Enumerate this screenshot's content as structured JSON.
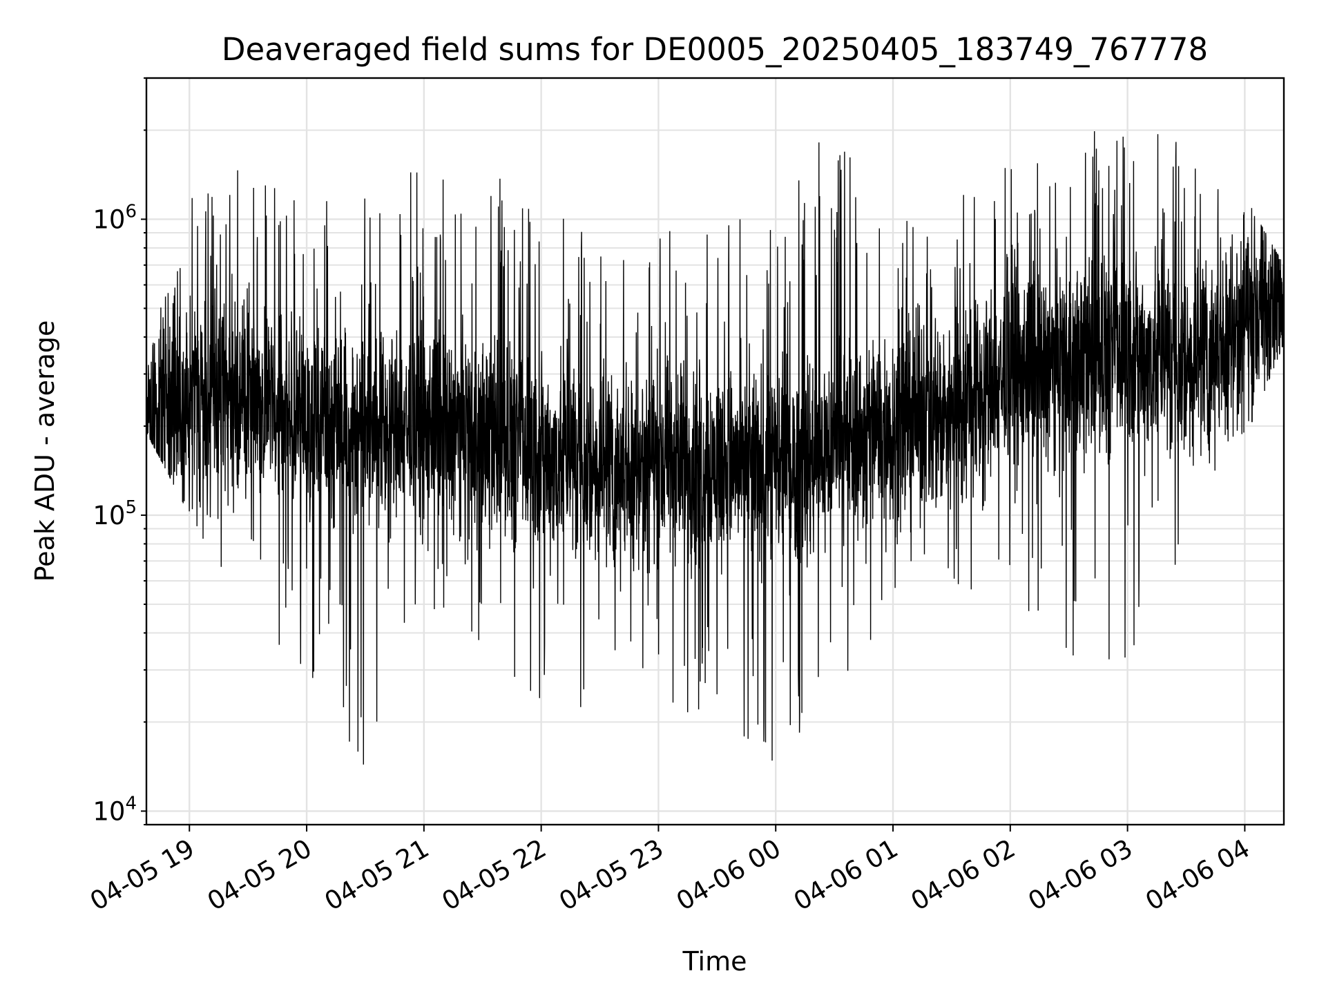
{
  "chart_data": {
    "type": "line",
    "title": "Deaveraged field sums for DE0005_20250405_183749_767778",
    "xlabel": "Time",
    "ylabel": "Peak ADU - average",
    "yscale": "log",
    "ylim": [
      9000,
      3000000
    ],
    "xlim": [
      "2025-04-05 18:38",
      "2025-04-06 04:20"
    ],
    "grid": true,
    "x_ticks": [
      "04-05 19",
      "04-05 20",
      "04-05 21",
      "04-05 22",
      "04-05 23",
      "04-06 00",
      "04-06 01",
      "04-06 02",
      "04-06 03",
      "04-06 04"
    ],
    "y_ticks": [
      {
        "base": "10",
        "exp": "4",
        "value": 10000
      },
      {
        "base": "10",
        "exp": "5",
        "value": 100000
      },
      {
        "base": "10",
        "exp": "6",
        "value": 1000000
      }
    ],
    "series": [
      {
        "color": "#000000",
        "x": [
          "2025-04-05 18:38",
          "2025-04-05 19:00",
          "2025-04-05 19:30",
          "2025-04-05 20:00",
          "2025-04-05 20:30",
          "2025-04-05 21:00",
          "2025-04-05 21:30",
          "2025-04-05 22:00",
          "2025-04-05 22:30",
          "2025-04-05 23:00",
          "2025-04-05 23:30",
          "2025-04-06 00:00",
          "2025-04-06 00:30",
          "2025-04-06 01:00",
          "2025-04-06 01:30",
          "2025-04-06 02:00",
          "2025-04-06 02:30",
          "2025-04-06 03:00",
          "2025-04-06 03:30",
          "2025-04-06 04:00",
          "2025-04-06 04:20"
        ],
        "values": [
          230000,
          240000,
          260000,
          210000,
          200000,
          200000,
          190000,
          160000,
          150000,
          150000,
          150000,
          140000,
          170000,
          200000,
          230000,
          300000,
          330000,
          350000,
          330000,
          450000,
          520000
        ],
        "envelope_max": [
          300000,
          1400000,
          1600000,
          1200000,
          1300000,
          1500000,
          1500000,
          1200000,
          1000000,
          900000,
          1100000,
          1000000,
          2300000,
          900000,
          1500000,
          1500000,
          1900000,
          2200000,
          2100000,
          1200000,
          700000
        ],
        "envelope_min": [
          190000,
          100000,
          45000,
          30000,
          13000,
          50000,
          35000,
          23000,
          18000,
          22000,
          20000,
          12000,
          26000,
          45000,
          48000,
          55000,
          31000,
          32000,
          70000,
          180000,
          380000
        ]
      }
    ]
  }
}
